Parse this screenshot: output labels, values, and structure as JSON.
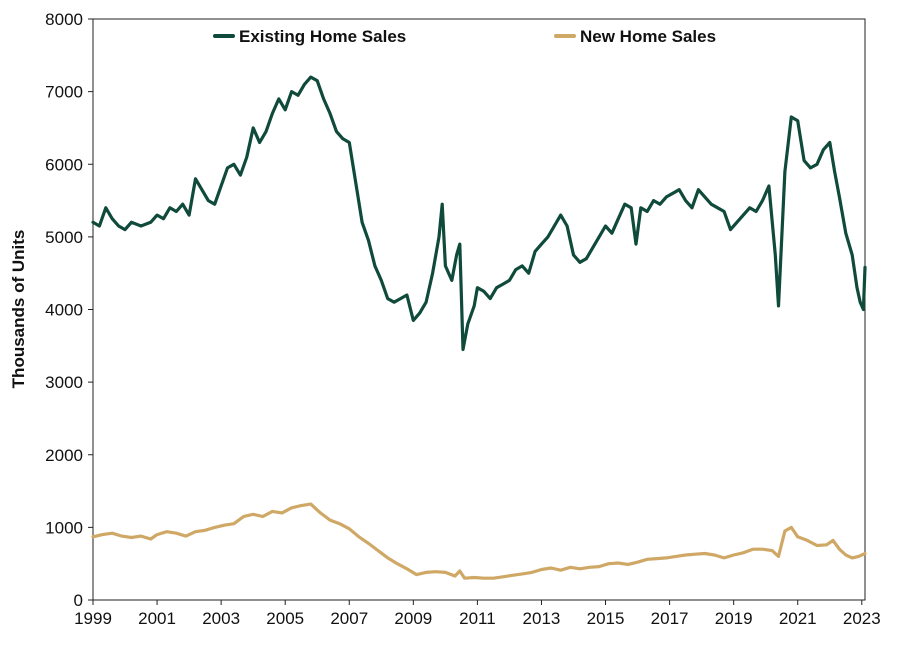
{
  "chart_data": {
    "type": "line",
    "title": "",
    "xlabel": "",
    "ylabel": "Thousands of Units",
    "xlim": [
      1999.0,
      2023.1
    ],
    "ylim": [
      0,
      8000
    ],
    "xticks": [
      "1999",
      "2001",
      "2003",
      "2005",
      "2007",
      "2009",
      "2011",
      "2013",
      "2015",
      "2017",
      "2019",
      "2021",
      "2023"
    ],
    "yticks": [
      "0",
      "1000",
      "2000",
      "3000",
      "4000",
      "5000",
      "6000",
      "7000",
      "8000"
    ],
    "grid": false,
    "legend_position": "top-center",
    "series": [
      {
        "name": "Existing Home Sales",
        "color": "#0f4a3a",
        "points": [
          [
            1999.0,
            5200
          ],
          [
            1999.2,
            5150
          ],
          [
            1999.4,
            5400
          ],
          [
            1999.6,
            5250
          ],
          [
            1999.8,
            5150
          ],
          [
            2000.0,
            5100
          ],
          [
            2000.2,
            5200
          ],
          [
            2000.5,
            5150
          ],
          [
            2000.8,
            5200
          ],
          [
            2001.0,
            5300
          ],
          [
            2001.2,
            5250
          ],
          [
            2001.4,
            5400
          ],
          [
            2001.6,
            5350
          ],
          [
            2001.8,
            5450
          ],
          [
            2002.0,
            5300
          ],
          [
            2002.2,
            5800
          ],
          [
            2002.4,
            5650
          ],
          [
            2002.6,
            5500
          ],
          [
            2002.8,
            5450
          ],
          [
            2003.0,
            5700
          ],
          [
            2003.2,
            5950
          ],
          [
            2003.4,
            6000
          ],
          [
            2003.6,
            5850
          ],
          [
            2003.8,
            6100
          ],
          [
            2004.0,
            6500
          ],
          [
            2004.2,
            6300
          ],
          [
            2004.4,
            6450
          ],
          [
            2004.6,
            6700
          ],
          [
            2004.8,
            6900
          ],
          [
            2005.0,
            6750
          ],
          [
            2005.2,
            7000
          ],
          [
            2005.4,
            6950
          ],
          [
            2005.6,
            7100
          ],
          [
            2005.8,
            7200
          ],
          [
            2006.0,
            7150
          ],
          [
            2006.2,
            6900
          ],
          [
            2006.4,
            6700
          ],
          [
            2006.6,
            6450
          ],
          [
            2006.8,
            6350
          ],
          [
            2007.0,
            6300
          ],
          [
            2007.2,
            5750
          ],
          [
            2007.4,
            5200
          ],
          [
            2007.6,
            4950
          ],
          [
            2007.8,
            4600
          ],
          [
            2008.0,
            4400
          ],
          [
            2008.2,
            4150
          ],
          [
            2008.4,
            4100
          ],
          [
            2008.6,
            4150
          ],
          [
            2008.8,
            4200
          ],
          [
            2009.0,
            3850
          ],
          [
            2009.2,
            3950
          ],
          [
            2009.4,
            4100
          ],
          [
            2009.6,
            4500
          ],
          [
            2009.8,
            5000
          ],
          [
            2009.9,
            5450
          ],
          [
            2010.0,
            4600
          ],
          [
            2010.2,
            4400
          ],
          [
            2010.35,
            4750
          ],
          [
            2010.45,
            4900
          ],
          [
            2010.55,
            3450
          ],
          [
            2010.7,
            3800
          ],
          [
            2010.9,
            4050
          ],
          [
            2011.0,
            4300
          ],
          [
            2011.2,
            4250
          ],
          [
            2011.4,
            4150
          ],
          [
            2011.6,
            4300
          ],
          [
            2011.8,
            4350
          ],
          [
            2012.0,
            4400
          ],
          [
            2012.2,
            4550
          ],
          [
            2012.4,
            4600
          ],
          [
            2012.6,
            4500
          ],
          [
            2012.8,
            4800
          ],
          [
            2013.0,
            4900
          ],
          [
            2013.2,
            5000
          ],
          [
            2013.4,
            5150
          ],
          [
            2013.6,
            5300
          ],
          [
            2013.8,
            5150
          ],
          [
            2014.0,
            4750
          ],
          [
            2014.2,
            4650
          ],
          [
            2014.4,
            4700
          ],
          [
            2014.6,
            4850
          ],
          [
            2014.8,
            5000
          ],
          [
            2015.0,
            5150
          ],
          [
            2015.2,
            5050
          ],
          [
            2015.4,
            5250
          ],
          [
            2015.6,
            5450
          ],
          [
            2015.8,
            5400
          ],
          [
            2015.95,
            4900
          ],
          [
            2016.1,
            5400
          ],
          [
            2016.3,
            5350
          ],
          [
            2016.5,
            5500
          ],
          [
            2016.7,
            5450
          ],
          [
            2016.9,
            5550
          ],
          [
            2017.1,
            5600
          ],
          [
            2017.3,
            5650
          ],
          [
            2017.5,
            5500
          ],
          [
            2017.7,
            5400
          ],
          [
            2017.9,
            5650
          ],
          [
            2018.1,
            5550
          ],
          [
            2018.3,
            5450
          ],
          [
            2018.5,
            5400
          ],
          [
            2018.7,
            5350
          ],
          [
            2018.9,
            5100
          ],
          [
            2019.1,
            5200
          ],
          [
            2019.3,
            5300
          ],
          [
            2019.5,
            5400
          ],
          [
            2019.7,
            5350
          ],
          [
            2019.9,
            5500
          ],
          [
            2020.1,
            5700
          ],
          [
            2020.3,
            4750
          ],
          [
            2020.4,
            4050
          ],
          [
            2020.6,
            5900
          ],
          [
            2020.8,
            6650
          ],
          [
            2021.0,
            6600
          ],
          [
            2021.2,
            6050
          ],
          [
            2021.4,
            5950
          ],
          [
            2021.6,
            6000
          ],
          [
            2021.8,
            6200
          ],
          [
            2022.0,
            6300
          ],
          [
            2022.15,
            5900
          ],
          [
            2022.3,
            5550
          ],
          [
            2022.5,
            5050
          ],
          [
            2022.7,
            4750
          ],
          [
            2022.85,
            4300
          ],
          [
            2022.95,
            4100
          ],
          [
            2023.05,
            4000
          ],
          [
            2023.1,
            4580
          ]
        ]
      },
      {
        "name": "New Home Sales",
        "color": "#cfa866",
        "points": [
          [
            1999.0,
            870
          ],
          [
            1999.3,
            900
          ],
          [
            1999.6,
            920
          ],
          [
            1999.9,
            880
          ],
          [
            2000.2,
            860
          ],
          [
            2000.5,
            880
          ],
          [
            2000.8,
            840
          ],
          [
            2001.0,
            900
          ],
          [
            2001.3,
            940
          ],
          [
            2001.6,
            920
          ],
          [
            2001.9,
            880
          ],
          [
            2002.2,
            940
          ],
          [
            2002.5,
            960
          ],
          [
            2002.8,
            1000
          ],
          [
            2003.1,
            1030
          ],
          [
            2003.4,
            1050
          ],
          [
            2003.7,
            1150
          ],
          [
            2004.0,
            1180
          ],
          [
            2004.3,
            1150
          ],
          [
            2004.6,
            1220
          ],
          [
            2004.9,
            1200
          ],
          [
            2005.2,
            1270
          ],
          [
            2005.5,
            1300
          ],
          [
            2005.8,
            1320
          ],
          [
            2006.1,
            1200
          ],
          [
            2006.4,
            1100
          ],
          [
            2006.7,
            1050
          ],
          [
            2007.0,
            980
          ],
          [
            2007.3,
            870
          ],
          [
            2007.6,
            780
          ],
          [
            2007.9,
            680
          ],
          [
            2008.2,
            580
          ],
          [
            2008.5,
            500
          ],
          [
            2008.8,
            430
          ],
          [
            2009.1,
            350
          ],
          [
            2009.4,
            380
          ],
          [
            2009.7,
            390
          ],
          [
            2010.0,
            380
          ],
          [
            2010.3,
            330
          ],
          [
            2010.45,
            400
          ],
          [
            2010.6,
            300
          ],
          [
            2010.9,
            310
          ],
          [
            2011.2,
            300
          ],
          [
            2011.5,
            300
          ],
          [
            2011.8,
            320
          ],
          [
            2012.1,
            340
          ],
          [
            2012.4,
            360
          ],
          [
            2012.7,
            380
          ],
          [
            2013.0,
            420
          ],
          [
            2013.3,
            440
          ],
          [
            2013.6,
            410
          ],
          [
            2013.9,
            450
          ],
          [
            2014.2,
            430
          ],
          [
            2014.5,
            450
          ],
          [
            2014.8,
            460
          ],
          [
            2015.1,
            500
          ],
          [
            2015.4,
            510
          ],
          [
            2015.7,
            490
          ],
          [
            2016.0,
            520
          ],
          [
            2016.3,
            560
          ],
          [
            2016.6,
            570
          ],
          [
            2016.9,
            580
          ],
          [
            2017.2,
            600
          ],
          [
            2017.5,
            620
          ],
          [
            2017.8,
            630
          ],
          [
            2018.1,
            640
          ],
          [
            2018.4,
            620
          ],
          [
            2018.7,
            580
          ],
          [
            2019.0,
            620
          ],
          [
            2019.3,
            650
          ],
          [
            2019.6,
            700
          ],
          [
            2019.9,
            700
          ],
          [
            2020.2,
            680
          ],
          [
            2020.4,
            600
          ],
          [
            2020.6,
            950
          ],
          [
            2020.8,
            1000
          ],
          [
            2021.0,
            870
          ],
          [
            2021.3,
            820
          ],
          [
            2021.6,
            750
          ],
          [
            2021.9,
            760
          ],
          [
            2022.1,
            820
          ],
          [
            2022.3,
            700
          ],
          [
            2022.5,
            620
          ],
          [
            2022.7,
            580
          ],
          [
            2022.9,
            600
          ],
          [
            2023.1,
            640
          ]
        ]
      }
    ]
  }
}
